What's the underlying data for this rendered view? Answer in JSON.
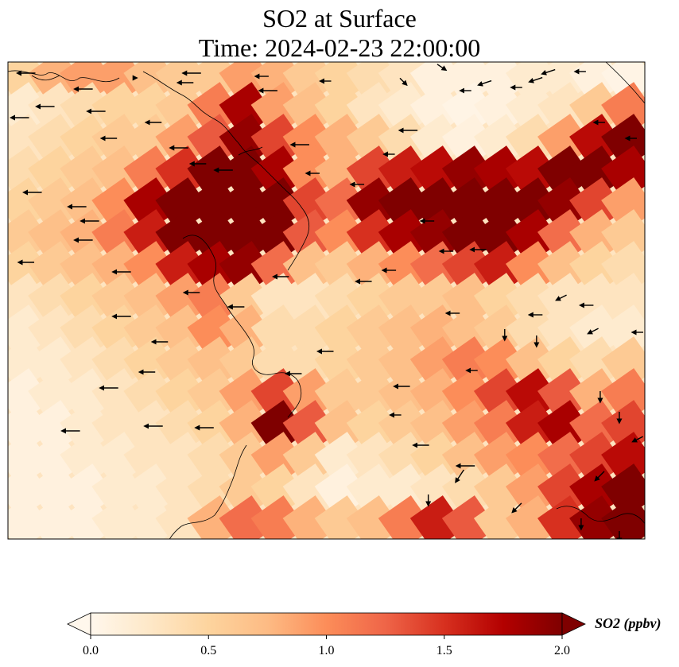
{
  "chart_data": {
    "type": "heatmap",
    "title": [
      "SO2 at Surface",
      "Time: 2024-02-23 22:00:00"
    ],
    "colorbar": {
      "label": "SO2 (ppbv)",
      "vmin": 0.0,
      "vmax": 2.0,
      "ticks": [
        0.0,
        0.5,
        1.0,
        1.5,
        2.0
      ],
      "tick_labels": [
        "0.0",
        "0.5",
        "1.0",
        "1.5",
        "2.0"
      ],
      "extend": "both",
      "colormap": "OrRd",
      "colors": [
        "#fff7ec",
        "#fee8c8",
        "#fdd49e",
        "#fdbb84",
        "#fc8d59",
        "#ef6548",
        "#d7301f",
        "#b30000",
        "#7f0000"
      ]
    },
    "grid": {
      "rows": 15,
      "cols": 20,
      "values": [
        [
          0.5,
          0.8,
          0.9,
          0.9,
          0.7,
          0.6,
          0.6,
          0.9,
          0.8,
          0.6,
          0.5,
          0.4,
          0.3,
          0.1,
          0.1,
          0.1,
          0.2,
          0.2,
          0.1,
          0.05
        ],
        [
          0.2,
          0.3,
          0.4,
          0.5,
          0.5,
          0.6,
          1.1,
          1.8,
          0.9,
          0.7,
          0.5,
          0.3,
          0.2,
          0.1,
          0.05,
          0.1,
          0.2,
          0.3,
          0.6,
          1.1
        ],
        [
          0.3,
          0.4,
          0.5,
          0.6,
          0.6,
          0.9,
          1.3,
          1.9,
          1.4,
          1.0,
          0.8,
          0.6,
          0.4,
          0.2,
          0.1,
          0.2,
          0.4,
          0.9,
          1.7,
          2.0
        ],
        [
          0.4,
          0.5,
          0.6,
          0.7,
          1.1,
          1.5,
          2.0,
          2.0,
          1.8,
          1.0,
          0.8,
          1.4,
          1.6,
          1.7,
          1.9,
          1.8,
          1.7,
          2.0,
          2.0,
          1.8
        ],
        [
          0.5,
          0.6,
          0.7,
          1.0,
          1.8,
          2.0,
          2.0,
          2.0,
          2.0,
          1.4,
          1.2,
          1.9,
          2.0,
          2.0,
          2.0,
          2.0,
          2.0,
          1.9,
          1.4,
          0.9
        ],
        [
          0.6,
          0.7,
          0.8,
          1.1,
          1.6,
          2.0,
          2.0,
          2.0,
          2.0,
          1.3,
          1.0,
          1.5,
          1.8,
          1.9,
          2.0,
          2.0,
          1.8,
          1.2,
          0.8,
          0.6
        ],
        [
          0.5,
          0.6,
          0.7,
          0.8,
          1.0,
          1.6,
          1.8,
          1.9,
          1.2,
          0.7,
          0.6,
          0.8,
          1.0,
          1.2,
          1.4,
          1.6,
          1.0,
          0.7,
          0.5,
          0.4
        ],
        [
          0.3,
          0.4,
          0.5,
          0.6,
          0.7,
          0.9,
          1.1,
          0.6,
          0.3,
          0.3,
          0.4,
          0.5,
          0.6,
          0.6,
          0.7,
          0.5,
          0.4,
          0.3,
          0.3,
          0.3
        ],
        [
          0.2,
          0.3,
          0.4,
          0.5,
          0.6,
          0.7,
          1.0,
          0.8,
          0.4,
          0.4,
          0.5,
          0.6,
          0.7,
          0.8,
          0.7,
          0.6,
          0.4,
          0.3,
          0.2,
          0.2
        ],
        [
          0.2,
          0.2,
          0.3,
          0.4,
          0.5,
          0.6,
          0.7,
          0.6,
          0.4,
          0.4,
          0.5,
          0.6,
          0.7,
          0.9,
          1.1,
          1.0,
          0.7,
          0.5,
          0.4,
          0.6
        ],
        [
          0.1,
          0.2,
          0.2,
          0.3,
          0.4,
          0.5,
          0.6,
          0.9,
          1.4,
          0.9,
          0.6,
          0.6,
          0.7,
          0.8,
          1.0,
          1.4,
          1.7,
          1.3,
          0.8,
          1.1
        ],
        [
          0.1,
          0.1,
          0.2,
          0.3,
          0.3,
          0.4,
          0.5,
          0.8,
          2.0,
          1.3,
          0.7,
          0.5,
          0.6,
          0.7,
          0.9,
          1.1,
          1.6,
          1.8,
          1.2,
          1.4
        ],
        [
          0.1,
          0.1,
          0.2,
          0.2,
          0.3,
          0.3,
          0.4,
          0.6,
          0.9,
          0.6,
          0.2,
          0.3,
          0.4,
          0.5,
          0.7,
          0.9,
          1.0,
          1.2,
          1.4,
          1.7
        ],
        [
          0.1,
          0.1,
          0.1,
          0.2,
          0.2,
          0.3,
          0.4,
          0.6,
          0.5,
          0.3,
          0.1,
          0.2,
          0.2,
          0.3,
          0.4,
          0.6,
          0.9,
          1.4,
          1.8,
          2.0
        ],
        [
          0.1,
          0.1,
          0.1,
          0.2,
          0.2,
          0.3,
          0.8,
          1.2,
          1.1,
          0.8,
          0.6,
          0.7,
          1.1,
          1.6,
          1.3,
          0.6,
          0.8,
          1.5,
          1.9,
          2.0
        ]
      ]
    },
    "wind_vectors": [
      [
        0.03,
        0.07,
        0.05,
        0.0
      ],
      [
        0.2,
        0.1,
        0.0,
        -0.0
      ],
      [
        0.29,
        0.07,
        0.05,
        0.0
      ],
      [
        0.4,
        0.09,
        0.03,
        0.0
      ],
      [
        0.12,
        0.17,
        0.05,
        0.0
      ],
      [
        0.28,
        0.13,
        0.04,
        0.0
      ],
      [
        0.41,
        0.18,
        0.05,
        0.0
      ],
      [
        0.5,
        0.12,
        0.02,
        0.0
      ],
      [
        0.68,
        0.03,
        -0.015,
        0.01
      ],
      [
        0.75,
        0.13,
        0.03,
        0.01
      ],
      [
        0.83,
        0.11,
        0.03,
        0.01
      ],
      [
        0.85,
        0.06,
        0.03,
        0.01
      ],
      [
        0.9,
        0.06,
        0.02,
        0.0
      ],
      [
        0.62,
        0.12,
        -0.01,
        0.01
      ],
      [
        0.06,
        0.28,
        0.05,
        0.0
      ],
      [
        0.14,
        0.31,
        0.05,
        0.0
      ],
      [
        0.23,
        0.38,
        0.04,
        0.0
      ],
      [
        0.02,
        0.35,
        0.05,
        0.0
      ],
      [
        0.16,
        0.48,
        0.04,
        0.0
      ],
      [
        0.46,
        0.52,
        0.05,
        0.0
      ],
      [
        0.27,
        0.54,
        0.05,
        0.0
      ],
      [
        0.3,
        0.64,
        0.04,
        0.0
      ],
      [
        0.34,
        0.68,
        0.05,
        0.0
      ],
      [
        0.48,
        0.7,
        0.03,
        0.0
      ],
      [
        0.55,
        0.77,
        0.03,
        0.0
      ],
      [
        0.6,
        0.58,
        0.02,
        0.0
      ],
      [
        0.63,
        0.43,
        0.05,
        0.0
      ],
      [
        0.72,
        0.18,
        0.02,
        0.0
      ],
      [
        0.8,
        0.16,
        0.02,
        0.0
      ],
      [
        0.93,
        0.38,
        0.02,
        0.0
      ],
      [
        0.98,
        0.48,
        0.02,
        0.0
      ],
      [
        0.04,
        0.82,
        0.05,
        0.0
      ],
      [
        0.11,
        0.91,
        0.05,
        0.0
      ],
      [
        0.13,
        1.0,
        0.05,
        0.0
      ],
      [
        0.12,
        1.12,
        0.05,
        0.0
      ],
      [
        0.18,
        1.32,
        0.05,
        0.0
      ],
      [
        0.03,
        1.26,
        0.04,
        0.0
      ],
      [
        0.18,
        1.6,
        0.05,
        0.0
      ],
      [
        0.24,
        1.76,
        0.04,
        0.0
      ],
      [
        0.29,
        1.45,
        0.04,
        0.0
      ],
      [
        0.22,
        1.95,
        0.04,
        0.0
      ],
      [
        0.16,
        2.05,
        0.05,
        0.0
      ],
      [
        0.1,
        2.32,
        0.05,
        0.0
      ],
      [
        0.23,
        2.29,
        0.05,
        0.0
      ],
      [
        0.31,
        2.3,
        0.05,
        0.0
      ],
      [
        0.36,
        1.54,
        0.04,
        0.0
      ],
      [
        0.43,
        1.35,
        0.04,
        0.0
      ],
      [
        0.45,
        1.96,
        0.04,
        0.0
      ],
      [
        0.5,
        1.82,
        0.04,
        0.0
      ],
      [
        0.56,
        1.38,
        0.04,
        0.0
      ],
      [
        0.6,
        1.31,
        0.03,
        0.0
      ],
      [
        0.66,
        1.0,
        0.03,
        0.0
      ],
      [
        0.69,
        1.19,
        0.03,
        0.0
      ],
      [
        0.74,
        1.18,
        0.04,
        0.0
      ],
      [
        0.7,
        1.58,
        0.03,
        0.0
      ],
      [
        0.73,
        1.94,
        0.02,
        0.0
      ],
      [
        0.62,
        2.04,
        0.04,
        0.0
      ],
      [
        0.61,
        2.22,
        0.02,
        0.0
      ],
      [
        0.65,
        2.41,
        0.04,
        0.0
      ],
      [
        0.72,
        2.54,
        0.05,
        0.0
      ],
      [
        0.83,
        1.59,
        0.03,
        0.0
      ],
      [
        0.78,
        1.71,
        0.0,
        0.02
      ],
      [
        0.83,
        1.75,
        0.0,
        0.02
      ],
      [
        0.87,
        1.48,
        0.02,
        0.01
      ],
      [
        0.92,
        1.69,
        0.02,
        0.01
      ],
      [
        0.91,
        1.53,
        0.03,
        0.0
      ],
      [
        0.99,
        1.7,
        0.02,
        0.0
      ],
      [
        0.93,
        2.1,
        0.0,
        0.02
      ],
      [
        0.96,
        2.23,
        0.0,
        0.02
      ],
      [
        0.99,
        2.37,
        0.02,
        0.01
      ],
      [
        0.93,
        2.6,
        0.02,
        0.02
      ],
      [
        0.71,
        2.6,
        0.02,
        0.03
      ],
      [
        0.66,
        2.75,
        0.0,
        0.02
      ],
      [
        0.8,
        2.8,
        0.02,
        0.02
      ],
      [
        0.9,
        2.9,
        0.0,
        0.02
      ],
      [
        0.96,
        2.98,
        0.0,
        0.02
      ]
    ]
  }
}
